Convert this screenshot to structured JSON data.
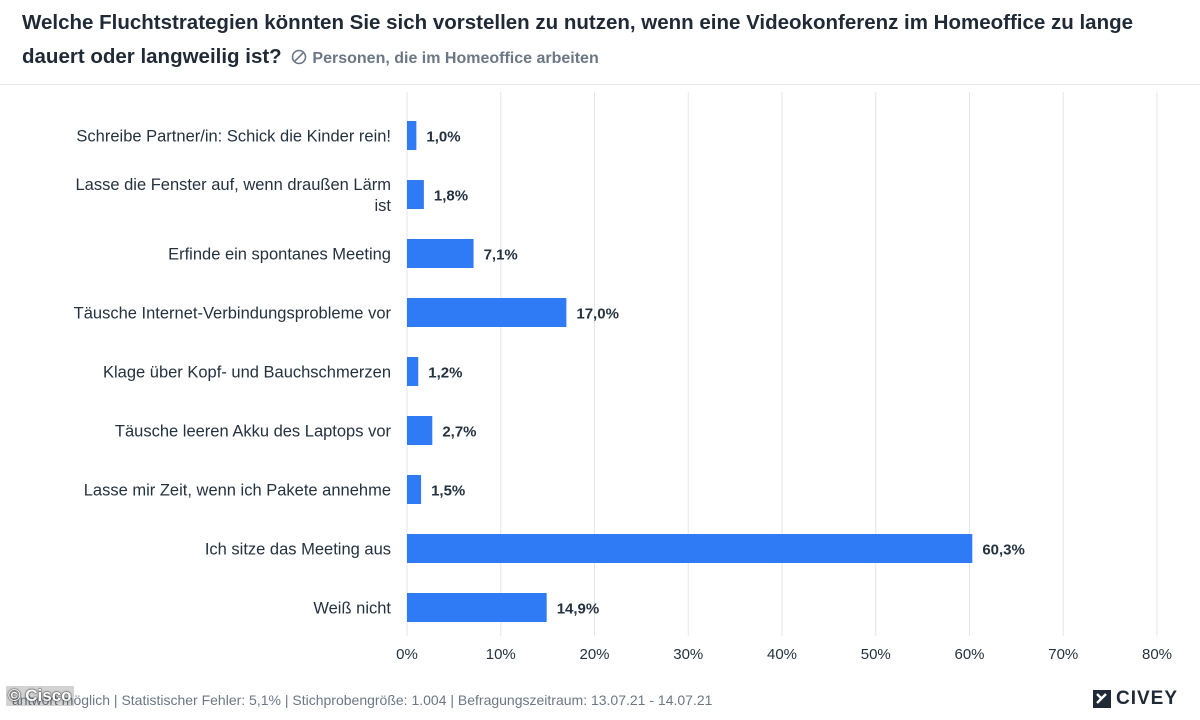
{
  "title": "Welche Fluchtstrategien könnten Sie sich vorstellen zu nutzen, wenn eine Videokonferenz im Homeoffice zu lange dauert oder langweilig ist?",
  "subtitle": "Personen, die im Homeoffice arbeiten",
  "footer": "antwort möglich | Statistischer Fehler: 5,1% | Stichprobengröße: 1.004 | Befragungszeitraum: 13.07.21 - 14.07.21",
  "copyright": "© Cisco",
  "brand": "CIVEY",
  "colors": {
    "bar": "#2f7bf5",
    "grid": "#e3e6ea",
    "text": "#1f2a36"
  },
  "chart_data": {
    "type": "bar",
    "orientation": "horizontal",
    "categories": [
      [
        "Schreibe Partner/in: Schick die Kinder rein!"
      ],
      [
        "Lasse die Fenster auf, wenn draußen Lärm",
        "ist"
      ],
      [
        "Erfinde ein spontanes Meeting"
      ],
      [
        "Täusche Internet-Verbindungsprobleme vor"
      ],
      [
        "Klage über Kopf- und Bauchschmerzen"
      ],
      [
        "Täusche leeren Akku des Laptops vor"
      ],
      [
        "Lasse mir Zeit, wenn ich Pakete annehme"
      ],
      [
        "Ich sitze das Meeting aus"
      ],
      [
        "Weiß nicht"
      ]
    ],
    "values": [
      1.0,
      1.8,
      7.1,
      17.0,
      1.2,
      2.7,
      1.5,
      60.3,
      14.9
    ],
    "value_labels": [
      "1,0%",
      "1,8%",
      "7,1%",
      "17,0%",
      "1,2%",
      "2,7%",
      "1,5%",
      "60,3%",
      "14,9%"
    ],
    "xlim": [
      0,
      80
    ],
    "xticks": [
      0,
      10,
      20,
      30,
      40,
      50,
      60,
      70,
      80
    ],
    "xtick_labels": [
      "0%",
      "10%",
      "20%",
      "30%",
      "40%",
      "50%",
      "60%",
      "70%",
      "80%"
    ],
    "grid": true
  }
}
